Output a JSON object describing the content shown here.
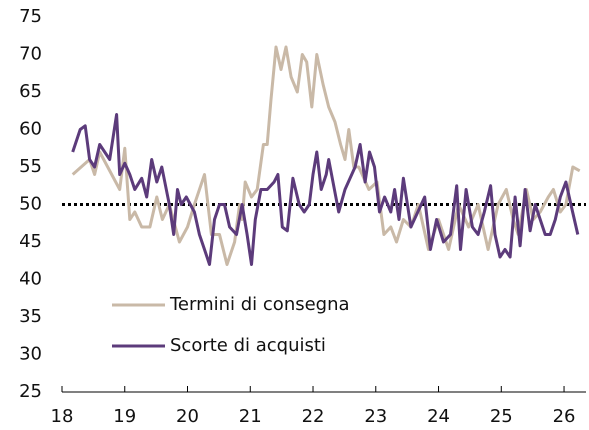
{
  "chart_data": {
    "type": "line",
    "xlim": [
      18,
      26.35
    ],
    "ylim": [
      25,
      75
    ],
    "xticks": [
      18,
      19,
      20,
      21,
      22,
      23,
      24,
      25,
      26
    ],
    "yticks": [
      25,
      30,
      35,
      40,
      45,
      50,
      55,
      60,
      65,
      70,
      75
    ],
    "reference_line": {
      "value": 50,
      "style": "dotted",
      "color": "#000000"
    },
    "legend": "lower-left",
    "series": [
      {
        "name": "Termini di consegna",
        "color": "#c9b9a7",
        "x": [
          18.17,
          18.44,
          18.52,
          18.6,
          18.92,
          19.0,
          19.08,
          19.16,
          19.27,
          19.4,
          19.51,
          19.6,
          19.71,
          19.87,
          20.0,
          20.11,
          20.27,
          20.38,
          20.51,
          20.63,
          20.75,
          20.83,
          20.87,
          20.92,
          21.02,
          21.11,
          21.21,
          21.27,
          21.33,
          21.41,
          21.49,
          21.57,
          21.65,
          21.75,
          21.83,
          21.9,
          21.98,
          22.06,
          22.16,
          22.25,
          22.35,
          22.44,
          22.51,
          22.57,
          22.65,
          22.73,
          22.89,
          23.02,
          23.13,
          23.24,
          23.33,
          23.44,
          23.56,
          23.68,
          23.84,
          24.0,
          24.16,
          24.32,
          24.48,
          24.63,
          24.79,
          24.95,
          25.08,
          25.19,
          25.27,
          25.4,
          25.51,
          25.62,
          25.75,
          25.83,
          25.94,
          26.03,
          26.14,
          26.25
        ],
        "values": [
          54,
          56,
          54,
          57,
          52,
          57.5,
          48,
          49,
          47,
          47,
          51,
          48,
          50,
          45,
          47,
          50,
          54,
          46,
          46,
          42,
          45,
          50,
          48,
          53,
          51,
          52,
          58,
          58,
          64,
          71,
          68,
          71,
          67,
          65,
          70,
          69,
          63,
          70,
          66,
          63,
          61,
          58,
          56,
          60,
          55,
          55,
          52,
          53,
          46,
          47,
          45,
          48,
          47,
          50,
          44,
          48,
          44,
          50,
          47,
          50,
          44,
          50,
          52,
          48,
          46,
          52,
          48,
          49,
          51,
          52,
          49,
          50,
          55,
          54.5
        ]
      },
      {
        "name": "Scorte di acquisti",
        "color": "#5c3b7b",
        "x": [
          18.17,
          18.29,
          18.37,
          18.44,
          18.52,
          18.6,
          18.68,
          18.76,
          18.87,
          18.92,
          19.0,
          19.08,
          19.16,
          19.27,
          19.35,
          19.43,
          19.51,
          19.59,
          19.71,
          19.78,
          19.84,
          19.9,
          19.98,
          20.11,
          20.19,
          20.27,
          20.35,
          20.43,
          20.51,
          20.59,
          20.67,
          20.78,
          20.87,
          20.95,
          21.02,
          21.08,
          21.17,
          21.27,
          21.38,
          21.44,
          21.51,
          21.59,
          21.68,
          21.78,
          21.86,
          21.94,
          22.0,
          22.06,
          22.13,
          22.21,
          22.25,
          22.41,
          22.51,
          22.67,
          22.75,
          22.83,
          22.9,
          22.98,
          23.06,
          23.14,
          23.24,
          23.3,
          23.37,
          23.44,
          23.56,
          23.78,
          23.87,
          23.97,
          24.08,
          24.19,
          24.29,
          24.35,
          24.44,
          24.54,
          24.63,
          24.73,
          24.83,
          24.9,
          24.98,
          25.06,
          25.14,
          25.22,
          25.3,
          25.38,
          25.46,
          25.54,
          25.62,
          25.7,
          25.78,
          25.86,
          25.94,
          26.03,
          26.11,
          26.22
        ],
        "values": [
          57,
          60,
          60.5,
          56,
          55,
          58,
          57,
          56,
          62,
          54,
          55.5,
          54,
          52,
          53.5,
          51,
          56,
          53,
          55,
          50,
          46,
          52,
          50,
          51,
          49,
          46,
          44,
          42,
          48,
          50,
          50,
          47,
          46,
          50,
          46,
          42,
          48,
          52,
          52,
          53,
          54,
          47,
          46.5,
          53.5,
          50,
          49,
          50,
          54,
          57,
          52,
          54,
          56,
          49,
          52,
          55,
          58,
          53,
          57,
          55,
          49,
          51,
          49,
          52,
          48,
          53.5,
          47,
          51,
          44,
          48,
          45,
          46,
          52.5,
          44,
          52,
          47,
          46,
          49,
          52.5,
          46,
          43,
          44,
          43,
          51,
          44.5,
          52,
          46.5,
          50,
          48,
          46,
          46,
          48,
          51,
          53,
          50,
          46
        ]
      }
    ]
  }
}
